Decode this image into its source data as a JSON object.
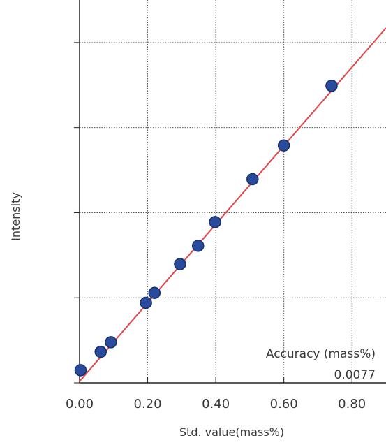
{
  "chart_data": {
    "type": "scatter",
    "xlabel": "Std. value(mass%)",
    "ylabel": "Intensity",
    "xlim": [
      0.0,
      0.9
    ],
    "ylim": [
      0.0,
      1.0
    ],
    "x_ticks": [
      0.0,
      0.2,
      0.4,
      0.6,
      0.8
    ],
    "x_tick_labels": [
      "0.00",
      "0.20",
      "0.40",
      "0.60",
      "0.80"
    ],
    "y_ticks": [
      0.0,
      0.2222,
      0.4444,
      0.6667,
      0.8889
    ],
    "y_tick_labels_shown": false,
    "grid": true,
    "series": [
      {
        "points": [
          {
            "x": 0.003,
            "y": 0.033
          },
          {
            "x": 0.062,
            "y": 0.081
          },
          {
            "x": 0.092,
            "y": 0.106
          },
          {
            "x": 0.195,
            "y": 0.209
          },
          {
            "x": 0.22,
            "y": 0.235
          },
          {
            "x": 0.295,
            "y": 0.31
          },
          {
            "x": 0.348,
            "y": 0.358
          },
          {
            "x": 0.398,
            "y": 0.42
          },
          {
            "x": 0.508,
            "y": 0.532
          },
          {
            "x": 0.6,
            "y": 0.62
          },
          {
            "x": 0.74,
            "y": 0.776
          }
        ]
      }
    ],
    "fit_line": {
      "type": "linear",
      "from": {
        "x": 0.0,
        "y": 0.004
      },
      "to": {
        "x": 0.9,
        "y": 0.927
      }
    },
    "colors": {
      "points": "#2a4a9c",
      "point_outline": "#16306f",
      "fit_line": "#e0464a",
      "grid": "#555555",
      "axis": "#222222"
    },
    "annotation": {
      "label": "Accuracy  (mass%)",
      "value": "0.0077"
    }
  }
}
